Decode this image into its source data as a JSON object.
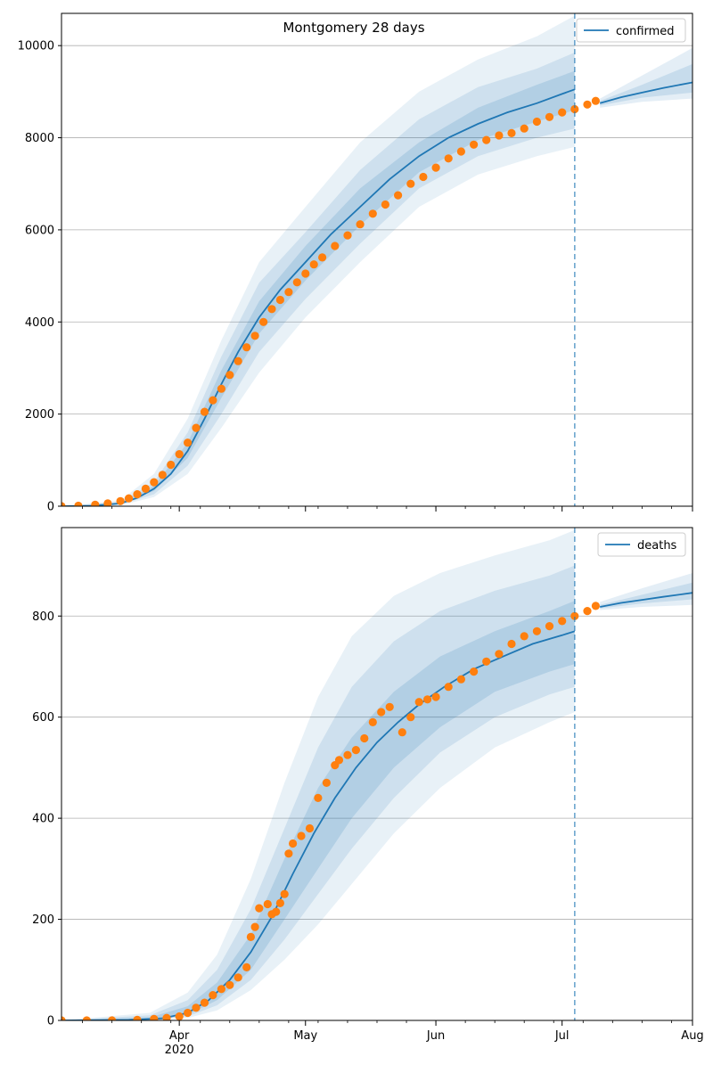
{
  "figure_title": "Montgomery 28 days",
  "x_ticks": {
    "major": [
      {
        "date": "2020-04-01",
        "label": "Apr",
        "sublabel": "2020"
      },
      {
        "date": "2020-05-01",
        "label": "May",
        "sublabel": ""
      },
      {
        "date": "2020-06-01",
        "label": "Jun",
        "sublabel": ""
      },
      {
        "date": "2020-07-01",
        "label": "Jul",
        "sublabel": ""
      },
      {
        "date": "2020-08-01",
        "label": "Aug",
        "sublabel": ""
      }
    ]
  },
  "colors": {
    "model": "#1f77b4",
    "observed": "#ff7f0e",
    "band": "#1f77b4",
    "grid": "#b0b0b0",
    "forecast_line": "#1f77b4"
  },
  "chart_data": [
    {
      "type": "line",
      "title": "Montgomery 28 days",
      "xlabel": "",
      "ylabel": "",
      "xlim": [
        "2020-03-04",
        "2020-08-01"
      ],
      "ylim": [
        0,
        10700
      ],
      "yticks": [
        0,
        2000,
        4000,
        6000,
        8000,
        10000
      ],
      "grid": "y",
      "legend_position": "top-right",
      "forecast_start": "2020-07-04",
      "legend": [
        "confirmed"
      ],
      "series": [
        {
          "name": "confirmed",
          "kind": "model-median",
          "x": [
            "2020-03-04",
            "2020-03-11",
            "2020-03-18",
            "2020-03-22",
            "2020-03-26",
            "2020-03-30",
            "2020-04-03",
            "2020-04-07",
            "2020-04-11",
            "2020-04-15",
            "2020-04-20",
            "2020-04-25",
            "2020-05-01",
            "2020-05-07",
            "2020-05-14",
            "2020-05-21",
            "2020-05-28",
            "2020-06-04",
            "2020-06-11",
            "2020-06-18",
            "2020-06-25",
            "2020-07-01",
            "2020-07-04",
            "2020-07-10",
            "2020-07-15",
            "2020-07-20",
            "2020-07-25",
            "2020-08-01"
          ],
          "values": [
            0,
            5,
            60,
            180,
            380,
            700,
            1200,
            1900,
            2650,
            3350,
            4100,
            4700,
            5300,
            5900,
            6500,
            7100,
            7600,
            8000,
            8300,
            8550,
            8750,
            8950,
            9050,
            8750,
            8880,
            8980,
            9080,
            9200
          ]
        },
        {
          "name": "band-95",
          "kind": "band",
          "x": [
            "2020-03-04",
            "2020-03-18",
            "2020-03-26",
            "2020-04-03",
            "2020-04-11",
            "2020-04-20",
            "2020-05-01",
            "2020-05-14",
            "2020-05-28",
            "2020-06-11",
            "2020-06-25",
            "2020-07-04"
          ],
          "lower": [
            0,
            20,
            200,
            700,
            1700,
            2900,
            4100,
            5300,
            6500,
            7200,
            7600,
            7800
          ],
          "upper": [
            0,
            120,
            700,
            1900,
            3600,
            5300,
            6500,
            7900,
            9000,
            9700,
            10200,
            10650
          ]
        },
        {
          "name": "band-80",
          "kind": "band",
          "x": [
            "2020-03-04",
            "2020-03-18",
            "2020-03-26",
            "2020-04-03",
            "2020-04-11",
            "2020-04-20",
            "2020-05-01",
            "2020-05-14",
            "2020-05-28",
            "2020-06-11",
            "2020-06-25",
            "2020-07-04"
          ],
          "lower": [
            0,
            35,
            260,
            880,
            2000,
            3350,
            4500,
            5700,
            6900,
            7600,
            8000,
            8200
          ],
          "upper": [
            0,
            90,
            520,
            1600,
            3250,
            4850,
            5950,
            7300,
            8400,
            9100,
            9500,
            9850
          ]
        },
        {
          "name": "band-50",
          "kind": "band",
          "x": [
            "2020-03-04",
            "2020-03-18",
            "2020-03-26",
            "2020-04-03",
            "2020-04-11",
            "2020-04-20",
            "2020-05-01",
            "2020-05-14",
            "2020-05-28",
            "2020-06-11",
            "2020-06-25",
            "2020-07-04"
          ],
          "lower": [
            0,
            48,
            330,
            1050,
            2350,
            3750,
            4900,
            6100,
            7250,
            7950,
            8350,
            8600
          ],
          "upper": [
            0,
            75,
            440,
            1380,
            2950,
            4450,
            5650,
            6900,
            7900,
            8650,
            9150,
            9450
          ]
        },
        {
          "name": "forecast-band-outer",
          "kind": "band",
          "x": [
            "2020-07-10",
            "2020-07-20",
            "2020-08-01"
          ],
          "lower": [
            8650,
            8780,
            8850
          ],
          "upper": [
            8850,
            9350,
            9950
          ]
        },
        {
          "name": "forecast-band-inner",
          "kind": "band",
          "x": [
            "2020-07-10",
            "2020-07-20",
            "2020-08-01"
          ],
          "lower": [
            8700,
            8870,
            8980
          ],
          "upper": [
            8800,
            9150,
            9600
          ]
        },
        {
          "name": "observed",
          "kind": "scatter",
          "x": [
            "2020-03-04",
            "2020-03-08",
            "2020-03-12",
            "2020-03-15",
            "2020-03-18",
            "2020-03-20",
            "2020-03-22",
            "2020-03-24",
            "2020-03-26",
            "2020-03-28",
            "2020-03-30",
            "2020-04-01",
            "2020-04-03",
            "2020-04-05",
            "2020-04-07",
            "2020-04-09",
            "2020-04-11",
            "2020-04-13",
            "2020-04-15",
            "2020-04-17",
            "2020-04-19",
            "2020-04-21",
            "2020-04-23",
            "2020-04-25",
            "2020-04-27",
            "2020-04-29",
            "2020-05-01",
            "2020-05-03",
            "2020-05-05",
            "2020-05-08",
            "2020-05-11",
            "2020-05-14",
            "2020-05-17",
            "2020-05-20",
            "2020-05-23",
            "2020-05-26",
            "2020-05-29",
            "2020-06-01",
            "2020-06-04",
            "2020-06-07",
            "2020-06-10",
            "2020-06-13",
            "2020-06-16",
            "2020-06-19",
            "2020-06-22",
            "2020-06-25",
            "2020-06-28",
            "2020-07-01",
            "2020-07-04",
            "2020-07-07",
            "2020-07-09"
          ],
          "values": [
            0,
            10,
            30,
            60,
            110,
            170,
            260,
            380,
            520,
            680,
            900,
            1130,
            1380,
            1700,
            2050,
            2300,
            2550,
            2850,
            3150,
            3450,
            3700,
            4000,
            4280,
            4480,
            4650,
            4860,
            5050,
            5250,
            5400,
            5650,
            5880,
            6120,
            6350,
            6550,
            6750,
            7000,
            7150,
            7350,
            7550,
            7700,
            7850,
            7950,
            8050,
            8100,
            8200,
            8350,
            8450,
            8550,
            8620,
            8720,
            8800
          ]
        }
      ]
    },
    {
      "type": "line",
      "title": "",
      "xlabel": "",
      "ylabel": "",
      "xlim": [
        "2020-03-04",
        "2020-08-01"
      ],
      "ylim": [
        0,
        975
      ],
      "yticks": [
        0,
        200,
        400,
        600,
        800
      ],
      "grid": "y",
      "legend_position": "top-right",
      "forecast_start": "2020-07-04",
      "legend": [
        "deaths"
      ],
      "series": [
        {
          "name": "deaths",
          "kind": "model-median",
          "x": [
            "2020-03-04",
            "2020-03-20",
            "2020-03-28",
            "2020-04-03",
            "2020-04-08",
            "2020-04-13",
            "2020-04-18",
            "2020-04-23",
            "2020-04-28",
            "2020-05-03",
            "2020-05-08",
            "2020-05-13",
            "2020-05-18",
            "2020-05-23",
            "2020-05-28",
            "2020-06-03",
            "2020-06-10",
            "2020-06-17",
            "2020-06-24",
            "2020-07-01",
            "2020-07-04",
            "2020-07-10",
            "2020-07-15",
            "2020-07-20",
            "2020-07-25",
            "2020-08-01"
          ],
          "values": [
            0,
            1,
            4,
            15,
            40,
            80,
            135,
            205,
            290,
            370,
            440,
            500,
            550,
            590,
            625,
            660,
            695,
            720,
            745,
            762,
            770,
            818,
            826,
            832,
            838,
            846
          ]
        },
        {
          "name": "band-95",
          "kind": "band",
          "x": [
            "2020-03-04",
            "2020-03-25",
            "2020-04-03",
            "2020-04-10",
            "2020-04-18",
            "2020-04-26",
            "2020-05-04",
            "2020-05-12",
            "2020-05-22",
            "2020-06-02",
            "2020-06-15",
            "2020-06-28",
            "2020-07-04"
          ],
          "lower": [
            0,
            0,
            5,
            20,
            60,
            120,
            190,
            270,
            370,
            460,
            540,
            590,
            610
          ],
          "upper": [
            0,
            15,
            55,
            130,
            280,
            470,
            640,
            760,
            840,
            885,
            920,
            950,
            970
          ]
        },
        {
          "name": "band-80",
          "kind": "band",
          "x": [
            "2020-03-04",
            "2020-03-25",
            "2020-04-03",
            "2020-04-10",
            "2020-04-18",
            "2020-04-26",
            "2020-05-04",
            "2020-05-12",
            "2020-05-22",
            "2020-06-02",
            "2020-06-15",
            "2020-06-28",
            "2020-07-04"
          ],
          "lower": [
            0,
            1,
            8,
            30,
            80,
            160,
            250,
            340,
            440,
            530,
            600,
            645,
            660
          ],
          "upper": [
            0,
            10,
            40,
            100,
            220,
            380,
            540,
            660,
            750,
            810,
            850,
            880,
            900
          ]
        },
        {
          "name": "band-50",
          "kind": "band",
          "x": [
            "2020-03-04",
            "2020-03-25",
            "2020-04-03",
            "2020-04-10",
            "2020-04-18",
            "2020-04-26",
            "2020-05-04",
            "2020-05-12",
            "2020-05-22",
            "2020-06-02",
            "2020-06-15",
            "2020-06-28",
            "2020-07-04"
          ],
          "lower": [
            0,
            2,
            11,
            40,
            100,
            200,
            300,
            400,
            500,
            580,
            650,
            690,
            705
          ],
          "upper": [
            0,
            6,
            28,
            75,
            170,
            320,
            460,
            560,
            650,
            720,
            770,
            810,
            830
          ]
        },
        {
          "name": "forecast-band-outer",
          "kind": "band",
          "x": [
            "2020-07-10",
            "2020-07-20",
            "2020-08-01"
          ],
          "lower": [
            812,
            818,
            822
          ],
          "upper": [
            828,
            855,
            885
          ]
        },
        {
          "name": "forecast-band-inner",
          "kind": "band",
          "x": [
            "2020-07-10",
            "2020-07-20",
            "2020-08-01"
          ],
          "lower": [
            815,
            825,
            833
          ],
          "upper": [
            822,
            842,
            866
          ]
        },
        {
          "name": "observed",
          "kind": "scatter",
          "x": [
            "2020-03-04",
            "2020-03-10",
            "2020-03-16",
            "2020-03-22",
            "2020-03-26",
            "2020-03-29",
            "2020-04-01",
            "2020-04-03",
            "2020-04-05",
            "2020-04-07",
            "2020-04-09",
            "2020-04-11",
            "2020-04-13",
            "2020-04-15",
            "2020-04-17",
            "2020-04-18",
            "2020-04-19",
            "2020-04-20",
            "2020-04-22",
            "2020-04-23",
            "2020-04-24",
            "2020-04-25",
            "2020-04-26",
            "2020-04-27",
            "2020-04-28",
            "2020-04-30",
            "2020-05-02",
            "2020-05-04",
            "2020-05-06",
            "2020-05-08",
            "2020-05-09",
            "2020-05-11",
            "2020-05-13",
            "2020-05-15",
            "2020-05-17",
            "2020-05-19",
            "2020-05-21",
            "2020-05-24",
            "2020-05-26",
            "2020-05-28",
            "2020-05-30",
            "2020-06-01",
            "2020-06-04",
            "2020-06-07",
            "2020-06-10",
            "2020-06-13",
            "2020-06-16",
            "2020-06-19",
            "2020-06-22",
            "2020-06-25",
            "2020-06-28",
            "2020-07-01",
            "2020-07-04",
            "2020-07-07",
            "2020-07-09"
          ],
          "values": [
            0,
            0,
            0,
            1,
            3,
            5,
            8,
            15,
            25,
            35,
            50,
            62,
            70,
            85,
            105,
            165,
            185,
            222,
            230,
            210,
            215,
            232,
            250,
            330,
            350,
            365,
            380,
            440,
            470,
            505,
            515,
            525,
            535,
            558,
            590,
            610,
            620,
            570,
            600,
            630,
            635,
            640,
            660,
            675,
            690,
            710,
            725,
            745,
            760,
            770,
            780,
            790,
            800,
            810,
            820
          ]
        }
      ]
    }
  ]
}
